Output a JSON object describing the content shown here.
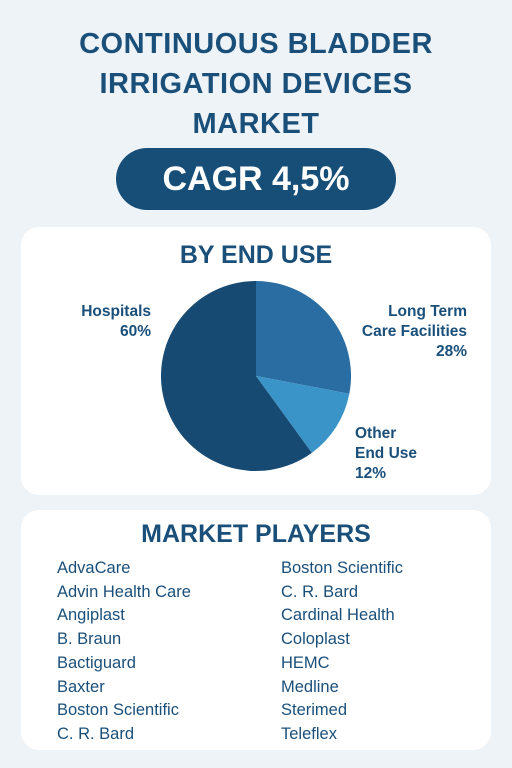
{
  "title_lines": [
    "CONTINUOUS BLADDER",
    "IRRIGATION DEVICES",
    "MARKET"
  ],
  "cagr": "CAGR 4,5%",
  "end_use": {
    "heading": "BY END USE",
    "labels": [
      {
        "name": "Hospitals",
        "pct": "60%"
      },
      {
        "name_lines": [
          "Long Term",
          "Care Facilities"
        ],
        "pct": "28%"
      },
      {
        "name_lines": [
          "Other",
          "End Use"
        ],
        "pct": "12%"
      }
    ]
  },
  "chart_data": {
    "type": "pie",
    "title": "BY END USE",
    "slices": [
      {
        "label": "Hospitals",
        "value": 60,
        "color": "#174a72"
      },
      {
        "label": "Long Term Care Facilities",
        "value": 28,
        "color": "#2a6da3"
      },
      {
        "label": "Other End Use",
        "value": 12,
        "color": "#3a94c8"
      }
    ]
  },
  "players": {
    "heading": "MARKET PLAYERS",
    "col1": [
      "AdvaCare",
      "Advin Health Care",
      "Angiplast",
      "B. Braun",
      "Bactiguard",
      "Baxter",
      "Boston Scientific",
      "C. R. Bard"
    ],
    "col2": [
      "Boston Scientific",
      "C. R. Bard",
      "Cardinal Health",
      "Coloplast",
      "HEMC",
      "Medline",
      "Sterimed",
      "Teleflex"
    ]
  }
}
